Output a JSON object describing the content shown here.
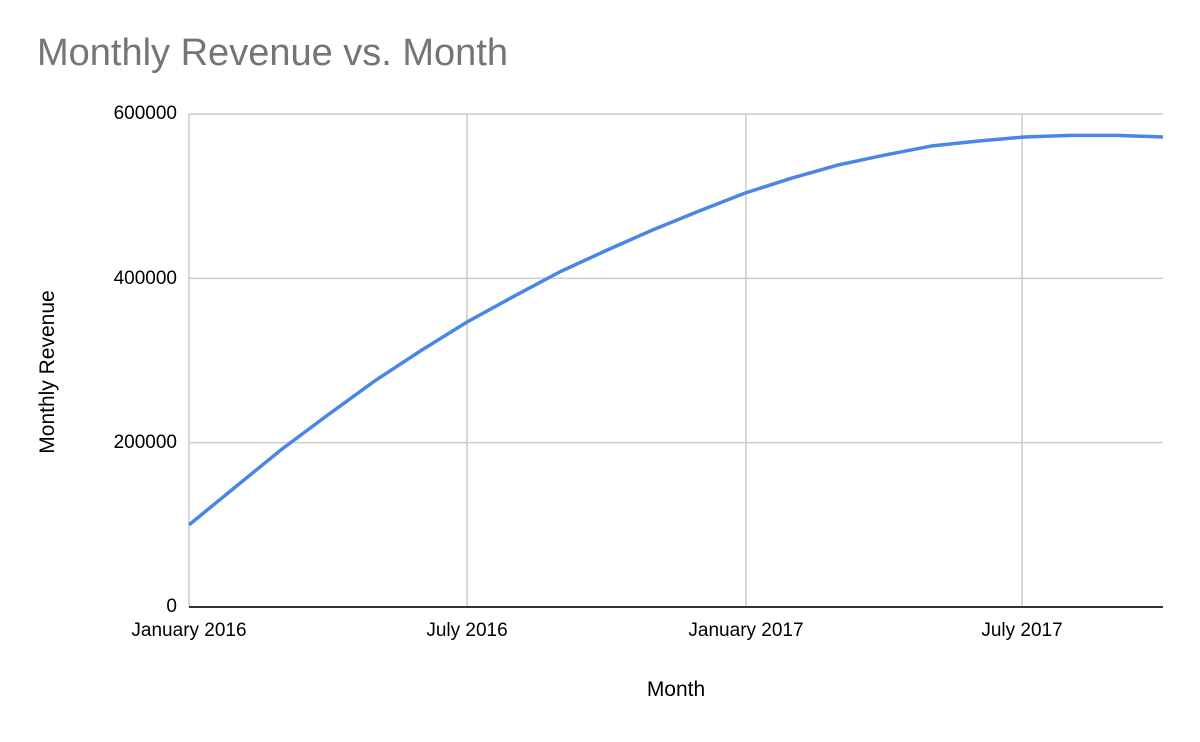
{
  "chart_data": {
    "type": "line",
    "title": "Monthly Revenue vs. Month",
    "xlabel": "Month",
    "ylabel": "Monthly Revenue",
    "ylim": [
      0,
      600000
    ],
    "yticks": [
      "0",
      "200000",
      "400000",
      "600000"
    ],
    "xticks": [
      "January 2016",
      "July 2016",
      "January 2017",
      "July 2017"
    ],
    "grid": true,
    "legend": "none",
    "line_color": "#4a86e8",
    "x": [
      "Jan 2016",
      "Feb 2016",
      "Mar 2016",
      "Apr 2016",
      "May 2016",
      "Jun 2016",
      "Jul 2016",
      "Aug 2016",
      "Sep 2016",
      "Oct 2016",
      "Nov 2016",
      "Dec 2016",
      "Jan 2017",
      "Feb 2017",
      "Mar 2017",
      "Apr 2017",
      "May 2017",
      "Jun 2017",
      "Jul 2017",
      "Aug 2017",
      "Sep 2017",
      "Oct 2017"
    ],
    "series": [
      {
        "name": "Monthly Revenue",
        "values": [
          100000,
          146000,
          192000,
          234000,
          275000,
          312000,
          347000,
          378000,
          408000,
          434000,
          459000,
          482000,
          504000,
          522000,
          538000,
          550000,
          561000,
          567000,
          572000,
          574000,
          574000,
          572000
        ]
      }
    ]
  }
}
